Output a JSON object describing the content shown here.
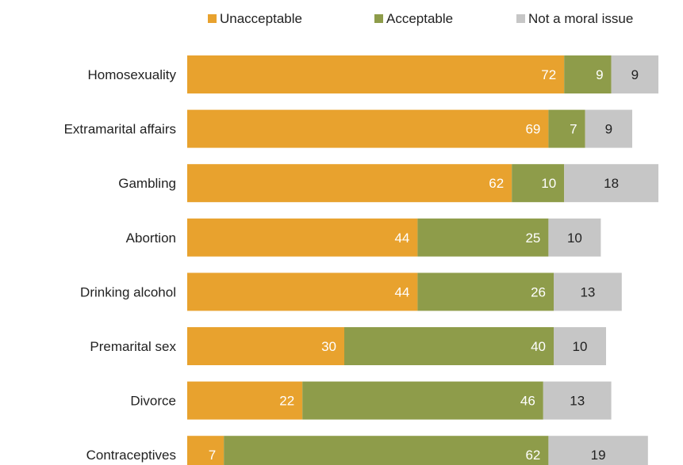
{
  "chart_data": {
    "type": "bar",
    "orientation": "horizontal",
    "stacked": true,
    "legend_position": "top",
    "grid": false,
    "categories": [
      "Homosexuality",
      "Extramarital affairs",
      "Gambling",
      "Abortion",
      "Drinking alcohol",
      "Premarital sex",
      "Divorce",
      "Contraceptives"
    ],
    "series": [
      {
        "name": "Unacceptable",
        "color": "#E8A22E",
        "label_color": "#ffffff",
        "values": [
          72,
          69,
          62,
          44,
          44,
          30,
          22,
          7
        ]
      },
      {
        "name": "Acceptable",
        "color": "#8E9C4A",
        "label_color": "#ffffff",
        "values": [
          9,
          7,
          10,
          25,
          26,
          40,
          46,
          62
        ]
      },
      {
        "name": "Not a moral issue",
        "color": "#C6C6C6",
        "label_color": "#222222",
        "values": [
          9,
          9,
          18,
          10,
          13,
          10,
          13,
          19
        ]
      }
    ]
  }
}
